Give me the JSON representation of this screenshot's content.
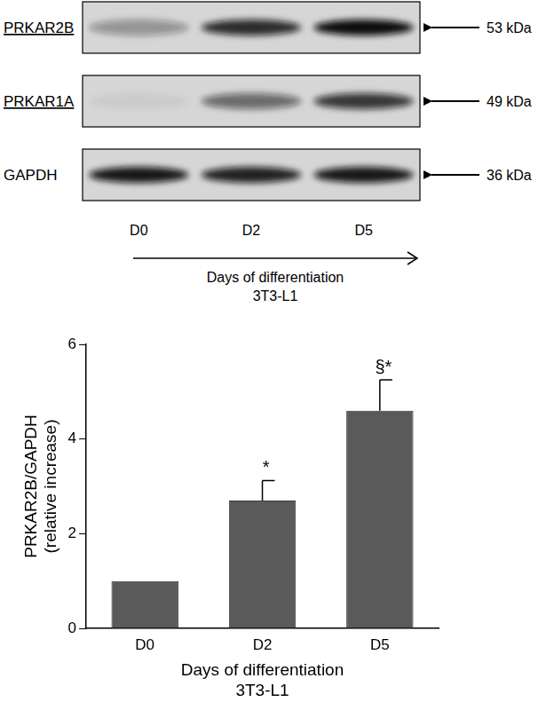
{
  "blot": {
    "rows": [
      {
        "label": "PRKAR2B",
        "underlined": true,
        "size_label": "53 kDa",
        "intensity": [
          0.35,
          0.85,
          1.0
        ]
      },
      {
        "label": "PRKAR1A",
        "underlined": true,
        "size_label": "49 kDa",
        "intensity": [
          0.05,
          0.55,
          0.8
        ]
      },
      {
        "label": "GAPDH",
        "underlined": false,
        "size_label": "36 kDa",
        "intensity": [
          0.95,
          0.9,
          0.95
        ]
      }
    ],
    "lanes": [
      "D0",
      "D2",
      "D5"
    ],
    "axis_label": [
      "Days of differentiation",
      "3T3-L1"
    ]
  },
  "chart_data": {
    "type": "bar",
    "categories": [
      "D0",
      "D2",
      "D5"
    ],
    "values": [
      1.0,
      2.7,
      4.6
    ],
    "errors": [
      0,
      0.42,
      0.65
    ],
    "annotations": [
      null,
      "*",
      "§*"
    ],
    "color": "#5a5a5a",
    "x_label": [
      "Days of differentiation",
      "3T3-L1"
    ],
    "y_label": [
      "PRKAR2B/GAPDH",
      "(relative increase)"
    ],
    "ylim": [
      0,
      6
    ],
    "yticks": [
      0,
      2,
      4,
      6
    ],
    "grid": false
  }
}
